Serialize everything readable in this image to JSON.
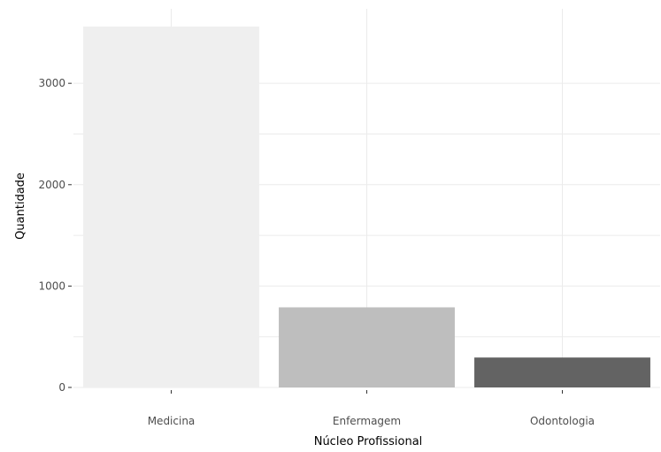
{
  "chart_data": {
    "type": "bar",
    "xlabel": "Núcleo Profissional",
    "ylabel": "Quantidade",
    "categories": [
      "Medicina",
      "Enfermagem",
      "Odontologia"
    ],
    "values": [
      3560,
      790,
      295
    ],
    "colors": [
      "#efefef",
      "#bebebe",
      "#636363"
    ],
    "ylim": [
      0,
      3560
    ],
    "yticks": [
      0,
      1000,
      2000,
      3000
    ],
    "ytick_labels": [
      "0",
      "1000",
      "2000",
      "3000"
    ],
    "grid": true,
    "legend": "none"
  }
}
